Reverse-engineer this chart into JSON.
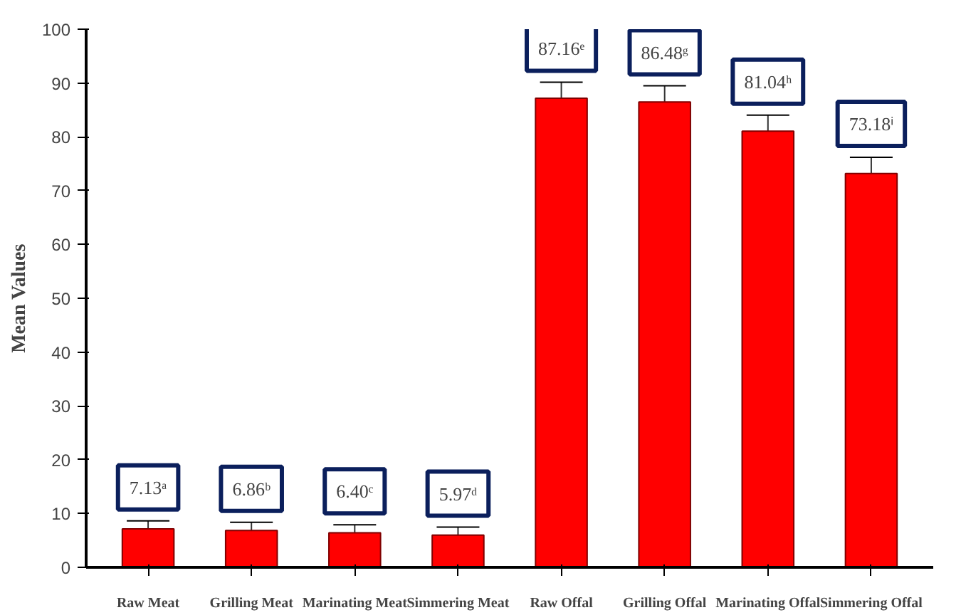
{
  "chart_data": {
    "type": "bar",
    "ylabel": "Mean Values",
    "categories": [
      "Raw Meat",
      "Grilling Meat",
      "Marinating Meat",
      "Simmering Meat",
      "Raw Offal",
      "Grilling Offal",
      "Marinating Offal",
      "Simmering Offal"
    ],
    "values": [
      7.13,
      6.86,
      6.4,
      5.97,
      87.16,
      86.48,
      81.04,
      73.18
    ],
    "errors": [
      1.5,
      1.5,
      1.5,
      1.5,
      3,
      3,
      3,
      3
    ],
    "value_labels": [
      "7.13ᵃ",
      "6.86ᵇ",
      "6.40ᶜ",
      "5.97ᵈ",
      "87.16ᵉ",
      "86.48ᵍ",
      "81.04ʰ",
      "73.18ⁱ"
    ],
    "color": "#ff0000",
    "ylim": [
      0,
      100
    ],
    "yticks": [
      0,
      10,
      20,
      30,
      40,
      50,
      60,
      70,
      80,
      90,
      100
    ],
    "grid": false
  }
}
